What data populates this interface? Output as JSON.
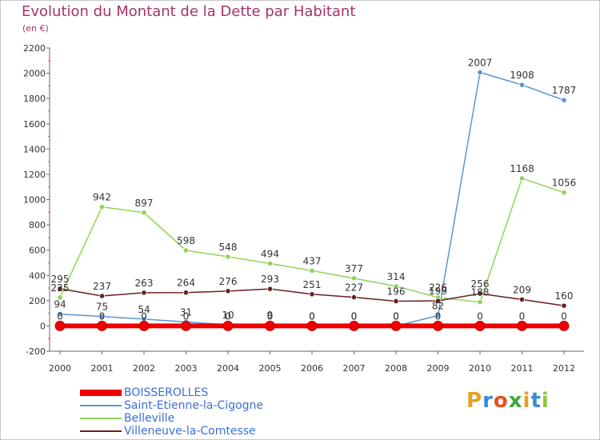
{
  "header": {
    "title": "Evolution du Montant de la Dette par Habitant",
    "unit": "(en €)"
  },
  "logo": {
    "letters": [
      "P",
      "r",
      "o",
      "x",
      "i",
      "t",
      "i"
    ],
    "colors": [
      "#e8a020",
      "#3a8ad8",
      "#e85020",
      "#3aaa3a",
      "#e8a020",
      "#3a8ad8",
      "#8ac83a"
    ]
  },
  "chart_data": {
    "type": "line",
    "x": [
      "2000",
      "2001",
      "2002",
      "2003",
      "2004",
      "2005",
      "2006",
      "2007",
      "2008",
      "2009",
      "2010",
      "2011",
      "2012"
    ],
    "ylim": [
      -200,
      2200
    ],
    "yticks": [
      -200,
      0,
      200,
      400,
      600,
      800,
      1000,
      1200,
      1400,
      1600,
      1800,
      2000,
      2200
    ],
    "grid": false,
    "legend_position": "bottom-left",
    "series": [
      {
        "name": "BOISSEROLLES",
        "color": "#ee0000",
        "values": [
          0,
          0,
          0,
          0,
          0,
          0,
          0,
          0,
          0,
          0,
          0,
          0,
          0
        ]
      },
      {
        "name": "Saint-Etienne-la-Cigogne",
        "color": "#5a96d0",
        "values": [
          94,
          75,
          54,
          31,
          10,
          9,
          0,
          0,
          0,
          82,
          2007,
          1908,
          1787
        ]
      },
      {
        "name": "Belleville",
        "color": "#8ed45a",
        "values": [
          225,
          942,
          897,
          598,
          548,
          494,
          437,
          377,
          314,
          226,
          188,
          1168,
          1056
        ]
      },
      {
        "name": "Villeneuve-la-Comtesse",
        "color": "#6a1e1e",
        "values": [
          295,
          237,
          263,
          264,
          276,
          293,
          251,
          227,
          196,
          199,
          256,
          209,
          160
        ]
      }
    ]
  }
}
